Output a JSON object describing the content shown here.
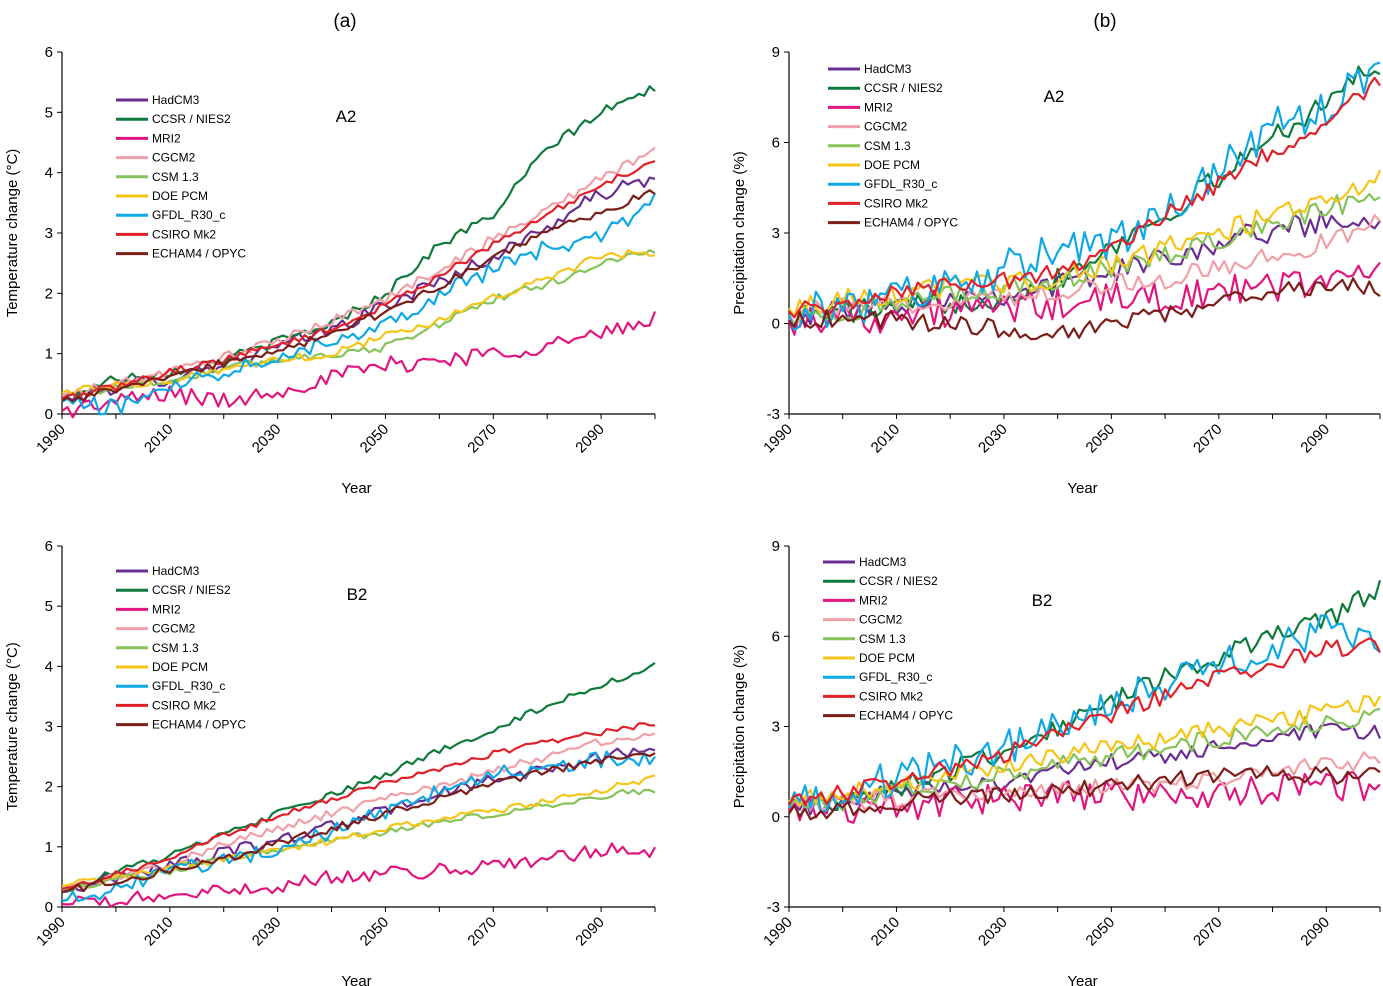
{
  "figure": {
    "panel_titles": [
      "(a)",
      "(b)"
    ]
  },
  "colors": {
    "HadCM3": "#6a2d91",
    "CCSR / NIES2": "#0f7a3c",
    "MRI2": "#e0157e",
    "CGCM2": "#f0a0a6",
    "CSM 1.3": "#86c35a",
    "DOE PCM": "#f5c518",
    "GFDL_R30_c": "#0fa8e6",
    "CSIRO Mk2": "#e2202a",
    "ECHAM4 / OPYC": "#7b1d19"
  },
  "chart_data": [
    {
      "type": "line",
      "id": "temp-a2",
      "scenario": "A2",
      "xlabel": "Year",
      "ylabel": "Temperature change (°C)",
      "xlim": [
        1990,
        2100
      ],
      "ylim": [
        0,
        6
      ],
      "xticks": [
        1990,
        2010,
        2030,
        2050,
        2070,
        2090
      ],
      "yticks": [
        0,
        1,
        2,
        3,
        4,
        5,
        6
      ],
      "grid": false,
      "legend": "top-left",
      "x_anchor_years": [
        1990,
        2000,
        2010,
        2020,
        2030,
        2040,
        2050,
        2060,
        2070,
        2080,
        2090,
        2100
      ],
      "series": [
        {
          "name": "HadCM3",
          "anchors": [
            0.22,
            0.45,
            0.6,
            0.85,
            1.1,
            1.4,
            1.8,
            2.2,
            2.6,
            3.1,
            3.65,
            3.9
          ],
          "noise": 0.12
        },
        {
          "name": "CCSR / NIES2",
          "anchors": [
            0.25,
            0.6,
            0.7,
            0.9,
            1.2,
            1.5,
            2.0,
            2.8,
            3.3,
            4.4,
            5.0,
            5.4
          ],
          "noise": 0.08
        },
        {
          "name": "MRI2",
          "anchors": [
            0.05,
            0.2,
            0.35,
            0.2,
            0.4,
            0.6,
            0.8,
            0.9,
            1.0,
            1.15,
            1.3,
            1.58
          ],
          "noise": 0.15
        },
        {
          "name": "CGCM2",
          "anchors": [
            0.3,
            0.5,
            0.7,
            0.95,
            1.2,
            1.55,
            1.9,
            2.4,
            2.9,
            3.4,
            3.9,
            4.4
          ],
          "noise": 0.08
        },
        {
          "name": "CSM 1.3",
          "anchors": [
            0.25,
            0.45,
            0.55,
            0.75,
            0.9,
            1.0,
            1.1,
            1.5,
            1.9,
            2.15,
            2.5,
            2.7
          ],
          "noise": 0.07
        },
        {
          "name": "DOE PCM",
          "anchors": [
            0.35,
            0.5,
            0.55,
            0.75,
            0.9,
            1.0,
            1.3,
            1.55,
            1.95,
            2.25,
            2.6,
            2.7
          ],
          "noise": 0.07
        },
        {
          "name": "GFDL_R30_c",
          "anchors": [
            0.2,
            0.1,
            0.5,
            0.7,
            1.0,
            1.2,
            1.5,
            2.0,
            2.4,
            2.75,
            2.9,
            3.6
          ],
          "noise": 0.14
        },
        {
          "name": "CSIRO Mk2",
          "anchors": [
            0.25,
            0.45,
            0.7,
            0.9,
            1.15,
            1.4,
            1.8,
            2.3,
            2.8,
            3.3,
            3.8,
            4.2
          ],
          "noise": 0.06
        },
        {
          "name": "ECHAM4 / OPYC",
          "anchors": [
            0.22,
            0.4,
            0.6,
            0.85,
            1.0,
            1.35,
            1.7,
            2.1,
            2.6,
            3.0,
            3.35,
            3.7
          ],
          "noise": 0.07
        }
      ]
    },
    {
      "type": "line",
      "id": "precip-a2",
      "scenario": "A2",
      "xlabel": "Year",
      "ylabel": "Precipitation change (%)",
      "xlim": [
        1990,
        2100
      ],
      "ylim": [
        -3,
        9
      ],
      "xticks": [
        1990,
        2010,
        2030,
        2050,
        2070,
        2090
      ],
      "yticks": [
        -3,
        0,
        3,
        6,
        9
      ],
      "grid": false,
      "legend": "top-left",
      "x_anchor_years": [
        1990,
        2000,
        2010,
        2020,
        2030,
        2040,
        2050,
        2060,
        2070,
        2080,
        2090,
        2100
      ],
      "series": [
        {
          "name": "HadCM3",
          "anchors": [
            0.2,
            0.5,
            0.7,
            0.9,
            1.0,
            1.3,
            1.7,
            2.2,
            2.7,
            3.1,
            3.4,
            3.5
          ],
          "noise": 0.4
        },
        {
          "name": "CCSR / NIES2",
          "anchors": [
            0.2,
            0.4,
            0.5,
            0.7,
            0.9,
            1.5,
            2.6,
            3.6,
            4.8,
            6.2,
            7.4,
            8.6
          ],
          "noise": 0.4
        },
        {
          "name": "MRI2",
          "anchors": [
            0.1,
            0.3,
            0.2,
            0.4,
            0.5,
            0.6,
            0.8,
            0.9,
            1.0,
            1.2,
            1.5,
            1.7
          ],
          "noise": 0.55
        },
        {
          "name": "CGCM2",
          "anchors": [
            0.3,
            0.5,
            0.6,
            0.8,
            0.9,
            1.1,
            1.3,
            1.5,
            1.8,
            2.2,
            2.7,
            3.4
          ],
          "noise": 0.35
        },
        {
          "name": "CSM 1.3",
          "anchors": [
            0.2,
            0.4,
            0.6,
            0.9,
            1.1,
            1.4,
            1.8,
            2.3,
            2.8,
            3.3,
            3.8,
            4.4
          ],
          "noise": 0.35
        },
        {
          "name": "DOE PCM",
          "anchors": [
            0.5,
            0.8,
            1.0,
            1.2,
            1.3,
            1.5,
            2.0,
            2.5,
            3.0,
            3.6,
            4.2,
            4.8
          ],
          "noise": 0.35
        },
        {
          "name": "GFDL_R30_c",
          "anchors": [
            0.3,
            0.6,
            0.8,
            1.2,
            1.8,
            2.5,
            2.6,
            3.5,
            5.0,
            6.5,
            7.0,
            8.5
          ],
          "noise": 0.7
        },
        {
          "name": "CSIRO Mk2",
          "anchors": [
            0.4,
            0.7,
            1.0,
            1.3,
            1.4,
            1.7,
            2.5,
            3.6,
            4.6,
            5.7,
            6.8,
            8.0
          ],
          "noise": 0.3
        },
        {
          "name": "ECHAM4 / OPYC",
          "anchors": [
            0.1,
            0.2,
            0.1,
            0.0,
            -0.2,
            -0.3,
            0.0,
            0.3,
            0.7,
            1.0,
            1.3,
            1.2
          ],
          "noise": 0.3
        }
      ]
    },
    {
      "type": "line",
      "id": "temp-b2",
      "scenario": "B2",
      "xlabel": "Year",
      "ylabel": "Temperature change (°C)",
      "xlim": [
        1990,
        2100
      ],
      "ylim": [
        0,
        6
      ],
      "xticks": [
        1990,
        2010,
        2030,
        2050,
        2070,
        2090
      ],
      "yticks": [
        0,
        1,
        2,
        3,
        4,
        5,
        6
      ],
      "grid": false,
      "legend": "top-left",
      "x_anchor_years": [
        1990,
        2000,
        2010,
        2020,
        2030,
        2040,
        2050,
        2060,
        2070,
        2080,
        2090,
        2100
      ],
      "series": [
        {
          "name": "HadCM3",
          "anchors": [
            0.25,
            0.5,
            0.7,
            0.9,
            1.1,
            1.35,
            1.6,
            1.9,
            2.1,
            2.3,
            2.5,
            2.65
          ],
          "noise": 0.1
        },
        {
          "name": "CCSR / NIES2",
          "anchors": [
            0.25,
            0.6,
            0.85,
            1.2,
            1.55,
            1.85,
            2.2,
            2.6,
            2.95,
            3.35,
            3.7,
            4.0
          ],
          "noise": 0.06
        },
        {
          "name": "MRI2",
          "anchors": [
            0.05,
            0.1,
            0.2,
            0.25,
            0.35,
            0.5,
            0.55,
            0.6,
            0.7,
            0.8,
            0.95,
            0.95
          ],
          "noise": 0.12
        },
        {
          "name": "CGCM2",
          "anchors": [
            0.3,
            0.5,
            0.7,
            1.05,
            1.3,
            1.55,
            1.8,
            2.0,
            2.25,
            2.5,
            2.75,
            2.9
          ],
          "noise": 0.07
        },
        {
          "name": "CSM 1.3",
          "anchors": [
            0.3,
            0.45,
            0.6,
            0.8,
            0.95,
            1.1,
            1.25,
            1.4,
            1.55,
            1.7,
            1.85,
            1.95
          ],
          "noise": 0.06
        },
        {
          "name": "DOE PCM",
          "anchors": [
            0.35,
            0.5,
            0.65,
            0.8,
            0.95,
            1.1,
            1.3,
            1.45,
            1.6,
            1.75,
            1.95,
            2.15
          ],
          "noise": 0.06
        },
        {
          "name": "GFDL_R30_c",
          "anchors": [
            0.1,
            0.3,
            0.6,
            0.75,
            1.0,
            1.25,
            1.6,
            1.9,
            2.2,
            2.35,
            2.45,
            2.5
          ],
          "noise": 0.14
        },
        {
          "name": "CSIRO Mk2",
          "anchors": [
            0.3,
            0.55,
            0.8,
            1.2,
            1.5,
            1.8,
            2.05,
            2.3,
            2.55,
            2.75,
            2.9,
            3.05
          ],
          "noise": 0.05
        },
        {
          "name": "ECHAM4 / OPYC",
          "anchors": [
            0.25,
            0.45,
            0.6,
            0.8,
            1.05,
            1.3,
            1.55,
            1.8,
            2.05,
            2.25,
            2.45,
            2.5
          ],
          "noise": 0.07
        }
      ]
    },
    {
      "type": "line",
      "id": "precip-b2",
      "scenario": "B2",
      "xlabel": "Year",
      "ylabel": "Precipitation change (%)",
      "xlim": [
        1990,
        2100
      ],
      "ylim": [
        -3,
        9
      ],
      "xticks": [
        1990,
        2010,
        2030,
        2050,
        2070,
        2090
      ],
      "yticks": [
        -3,
        0,
        3,
        6,
        9
      ],
      "grid": false,
      "legend": "top-left",
      "x_anchor_years": [
        1990,
        2000,
        2010,
        2020,
        2030,
        2040,
        2050,
        2060,
        2070,
        2080,
        2090,
        2100
      ],
      "series": [
        {
          "name": "HadCM3",
          "anchors": [
            0.2,
            0.5,
            0.8,
            1.0,
            1.2,
            1.5,
            1.8,
            2.0,
            2.3,
            2.6,
            2.8,
            2.8
          ],
          "noise": 0.3
        },
        {
          "name": "CCSR / NIES2",
          "anchors": [
            0.3,
            0.6,
            1.0,
            1.5,
            2.2,
            3.0,
            3.8,
            4.6,
            5.3,
            6.0,
            6.5,
            7.6
          ],
          "noise": 0.35
        },
        {
          "name": "MRI2",
          "anchors": [
            0.2,
            0.3,
            0.3,
            0.5,
            0.6,
            0.8,
            0.7,
            0.6,
            0.8,
            0.9,
            1.0,
            1.0
          ],
          "noise": 0.5
        },
        {
          "name": "CGCM2",
          "anchors": [
            0.3,
            0.5,
            0.6,
            0.7,
            0.8,
            0.9,
            1.0,
            1.1,
            1.3,
            1.5,
            1.7,
            1.9
          ],
          "noise": 0.3
        },
        {
          "name": "CSM 1.3",
          "anchors": [
            0.3,
            0.5,
            0.8,
            1.1,
            1.4,
            1.7,
            2.0,
            2.3,
            2.6,
            2.9,
            3.1,
            3.3
          ],
          "noise": 0.3
        },
        {
          "name": "DOE PCM",
          "anchors": [
            0.5,
            0.8,
            1.1,
            1.4,
            1.7,
            2.0,
            2.3,
            2.6,
            2.9,
            3.2,
            3.5,
            3.9
          ],
          "noise": 0.3
        },
        {
          "name": "GFDL_R30_c",
          "anchors": [
            0.3,
            0.8,
            1.3,
            1.8,
            2.3,
            3.0,
            3.8,
            4.4,
            5.0,
            5.8,
            6.2,
            5.6
          ],
          "noise": 0.6
        },
        {
          "name": "CSIRO Mk2",
          "anchors": [
            0.4,
            0.8,
            1.2,
            1.6,
            2.1,
            2.7,
            3.4,
            4.0,
            4.6,
            5.1,
            5.6,
            5.7
          ],
          "noise": 0.3
        },
        {
          "name": "ECHAM4 / OPYC",
          "anchors": [
            0.1,
            0.3,
            0.5,
            0.6,
            0.7,
            0.8,
            1.0,
            1.2,
            1.3,
            1.4,
            1.4,
            1.3
          ],
          "noise": 0.3
        }
      ]
    }
  ]
}
